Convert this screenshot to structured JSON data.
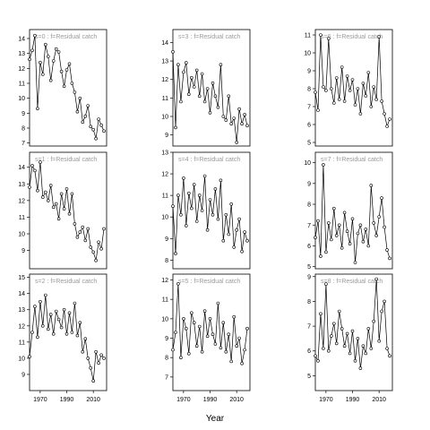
{
  "chart_data": {
    "type": "line",
    "xlabel": "Year",
    "x_ticks": [
      1970,
      1990,
      2010
    ],
    "xlim": [
      1962,
      2020
    ],
    "line_color": "#000000",
    "point_color": "#000000",
    "panel_columns": [
      [
        {
          "strip": "s=0 : f=Residual catch",
          "ylim": [
            6.8,
            14.6
          ],
          "y_ticks": [
            7,
            8,
            9,
            10,
            11,
            12,
            13,
            14
          ],
          "x": [
            1962,
            1964,
            1966,
            1968,
            1970,
            1972,
            1974,
            1976,
            1978,
            1980,
            1982,
            1984,
            1986,
            1988,
            1990,
            1992,
            1994,
            1996,
            1998,
            2000,
            2002,
            2004,
            2006,
            2008,
            2010,
            2012,
            2014,
            2016,
            2018
          ],
          "y": [
            12.6,
            13.2,
            14.2,
            9.3,
            12.4,
            11.6,
            13.6,
            12.8,
            11.2,
            12.5,
            13.3,
            13.1,
            11.8,
            10.8,
            11.9,
            12.3,
            11.0,
            10.4,
            9.1,
            10.0,
            8.4,
            8.8,
            9.5,
            8.1,
            7.9,
            7.3,
            8.6,
            8.2,
            7.8
          ]
        },
        {
          "strip": "s=1 : f=Residual catch",
          "ylim": [
            7.9,
            14.9
          ],
          "y_ticks": [
            9,
            10,
            11,
            12,
            13,
            14
          ],
          "x": [
            1962,
            1964,
            1966,
            1968,
            1970,
            1972,
            1974,
            1976,
            1978,
            1980,
            1982,
            1984,
            1986,
            1988,
            1990,
            1992,
            1994,
            1996,
            1998,
            2000,
            2002,
            2004,
            2006,
            2008,
            2010,
            2012,
            2014,
            2016,
            2018
          ],
          "y": [
            12.8,
            14.1,
            13.8,
            12.6,
            14.3,
            12.2,
            12.5,
            12.0,
            12.9,
            11.6,
            11.8,
            10.9,
            12.4,
            11.5,
            12.7,
            11.2,
            12.4,
            10.6,
            9.8,
            10.1,
            10.4,
            9.6,
            10.3,
            9.2,
            8.9,
            8.4,
            9.5,
            9.1,
            10.3
          ]
        },
        {
          "strip": "s=2 : f=Residual catch",
          "ylim": [
            8.0,
            15.2
          ],
          "y_ticks": [
            9,
            10,
            11,
            12,
            13,
            14,
            15
          ],
          "x": [
            1962,
            1964,
            1966,
            1968,
            1970,
            1972,
            1974,
            1976,
            1978,
            1980,
            1982,
            1984,
            1986,
            1988,
            1990,
            1992,
            1994,
            1996,
            1998,
            2000,
            2002,
            2004,
            2006,
            2008,
            2010,
            2012,
            2014,
            2016,
            2018
          ],
          "y": [
            10.1,
            11.6,
            13.2,
            11.3,
            13.5,
            12.0,
            13.9,
            11.8,
            12.7,
            11.5,
            12.9,
            12.4,
            11.9,
            13.0,
            11.5,
            12.8,
            11.6,
            13.4,
            11.4,
            12.2,
            10.4,
            11.2,
            10.0,
            9.4,
            8.6,
            10.4,
            9.7,
            10.2,
            10.0
          ]
        }
      ],
      [
        {
          "strip": "s=3 : f=Residual catch",
          "ylim": [
            8.4,
            14.7
          ],
          "y_ticks": [
            9,
            10,
            11,
            12,
            13,
            14
          ],
          "x": [
            1962,
            1964,
            1966,
            1968,
            1970,
            1972,
            1974,
            1976,
            1978,
            1980,
            1982,
            1984,
            1986,
            1988,
            1990,
            1992,
            1994,
            1996,
            1998,
            2000,
            2002,
            2004,
            2006,
            2008,
            2010,
            2012,
            2014,
            2016,
            2018
          ],
          "y": [
            13.5,
            9.4,
            12.8,
            10.8,
            12.4,
            12.9,
            11.2,
            12.1,
            11.6,
            12.5,
            11.1,
            12.3,
            10.8,
            11.5,
            10.2,
            11.8,
            11.1,
            10.5,
            12.8,
            10.0,
            9.8,
            11.1,
            9.6,
            9.9,
            8.6,
            10.4,
            9.6,
            10.1,
            9.5
          ]
        },
        {
          "strip": "s=4 : f=Residual catch",
          "ylim": [
            7.6,
            13.0
          ],
          "y_ticks": [
            8,
            9,
            10,
            11,
            12,
            13
          ],
          "x": [
            1962,
            1964,
            1966,
            1968,
            1970,
            1972,
            1974,
            1976,
            1978,
            1980,
            1982,
            1984,
            1986,
            1988,
            1990,
            1992,
            1994,
            1996,
            1998,
            2000,
            2002,
            2004,
            2006,
            2008,
            2010,
            2012,
            2014,
            2016,
            2018
          ],
          "y": [
            10.5,
            8.3,
            11.0,
            10.1,
            11.8,
            9.6,
            11.1,
            10.4,
            11.5,
            9.8,
            11.0,
            10.3,
            11.9,
            9.4,
            10.8,
            10.1,
            11.3,
            9.9,
            11.7,
            8.9,
            10.1,
            9.2,
            10.6,
            8.6,
            9.4,
            9.9,
            8.4,
            9.3,
            8.9
          ]
        },
        {
          "strip": "s=5 : f=Residual catch",
          "ylim": [
            6.3,
            12.3
          ],
          "y_ticks": [
            7,
            8,
            9,
            10,
            11,
            12
          ],
          "x": [
            1962,
            1964,
            1966,
            1968,
            1970,
            1972,
            1974,
            1976,
            1978,
            1980,
            1982,
            1984,
            1986,
            1988,
            1990,
            1992,
            1994,
            1996,
            1998,
            2000,
            2002,
            2004,
            2006,
            2008,
            2010,
            2012,
            2014,
            2016,
            2018
          ],
          "y": [
            8.4,
            9.3,
            11.8,
            8.0,
            10.0,
            9.5,
            8.2,
            10.3,
            9.8,
            8.6,
            9.6,
            8.3,
            10.4,
            9.1,
            10.0,
            9.2,
            8.7,
            10.8,
            8.5,
            9.8,
            8.3,
            9.2,
            7.8,
            10.1,
            8.6,
            9.0,
            7.7,
            8.4,
            9.5
          ]
        }
      ],
      [
        {
          "strip": "s=6 : f=Residual catch",
          "ylim": [
            4.8,
            11.3
          ],
          "y_ticks": [
            5,
            6,
            7,
            8,
            9,
            10,
            11
          ],
          "x": [
            1962,
            1964,
            1966,
            1968,
            1970,
            1972,
            1974,
            1976,
            1978,
            1980,
            1982,
            1984,
            1986,
            1988,
            1990,
            1992,
            1994,
            1996,
            1998,
            2000,
            2002,
            2004,
            2006,
            2008,
            2010,
            2012,
            2014,
            2016,
            2018
          ],
          "y": [
            7.8,
            6.8,
            11.0,
            8.1,
            7.9,
            10.8,
            8.0,
            7.2,
            8.6,
            7.4,
            9.2,
            7.3,
            8.7,
            7.9,
            8.5,
            7.1,
            8.0,
            6.6,
            8.3,
            7.6,
            8.9,
            7.0,
            8.1,
            7.4,
            10.9,
            7.3,
            6.6,
            5.9,
            6.3
          ]
        },
        {
          "strip": "s=7 : f=Residual catch",
          "ylim": [
            4.9,
            10.5
          ],
          "y_ticks": [
            5,
            6,
            7,
            8,
            9,
            10
          ],
          "x": [
            1962,
            1964,
            1966,
            1968,
            1970,
            1972,
            1974,
            1976,
            1978,
            1980,
            1982,
            1984,
            1986,
            1988,
            1990,
            1992,
            1994,
            1996,
            1998,
            2000,
            2002,
            2004,
            2006,
            2008,
            2010,
            2012,
            2014,
            2016,
            2018
          ],
          "y": [
            6.4,
            7.2,
            5.5,
            9.9,
            5.7,
            7.1,
            6.3,
            7.8,
            6.5,
            7.0,
            5.9,
            7.6,
            6.7,
            6.1,
            7.3,
            5.2,
            6.6,
            7.0,
            6.2,
            6.8,
            6.0,
            8.9,
            7.1,
            6.5,
            7.4,
            8.3,
            6.9,
            5.8,
            5.4
          ]
        },
        {
          "strip": "s=8 : f=Residual catch",
          "ylim": [
            4.4,
            9.1
          ],
          "y_ticks": [
            5,
            6,
            7,
            8,
            9
          ],
          "x": [
            1962,
            1964,
            1966,
            1968,
            1970,
            1972,
            1974,
            1976,
            1978,
            1980,
            1982,
            1984,
            1986,
            1988,
            1990,
            1992,
            1994,
            1996,
            1998,
            2000,
            2002,
            2004,
            2006,
            2008,
            2010,
            2012,
            2014,
            2016,
            2018
          ],
          "y": [
            5.8,
            5.6,
            7.5,
            6.1,
            8.7,
            6.0,
            6.6,
            7.1,
            6.3,
            7.6,
            6.9,
            6.2,
            6.7,
            5.9,
            6.8,
            5.6,
            6.5,
            5.3,
            6.2,
            5.9,
            6.9,
            6.1,
            7.2,
            8.9,
            6.4,
            7.6,
            8.0,
            6.1,
            5.8
          ]
        }
      ]
    ]
  }
}
